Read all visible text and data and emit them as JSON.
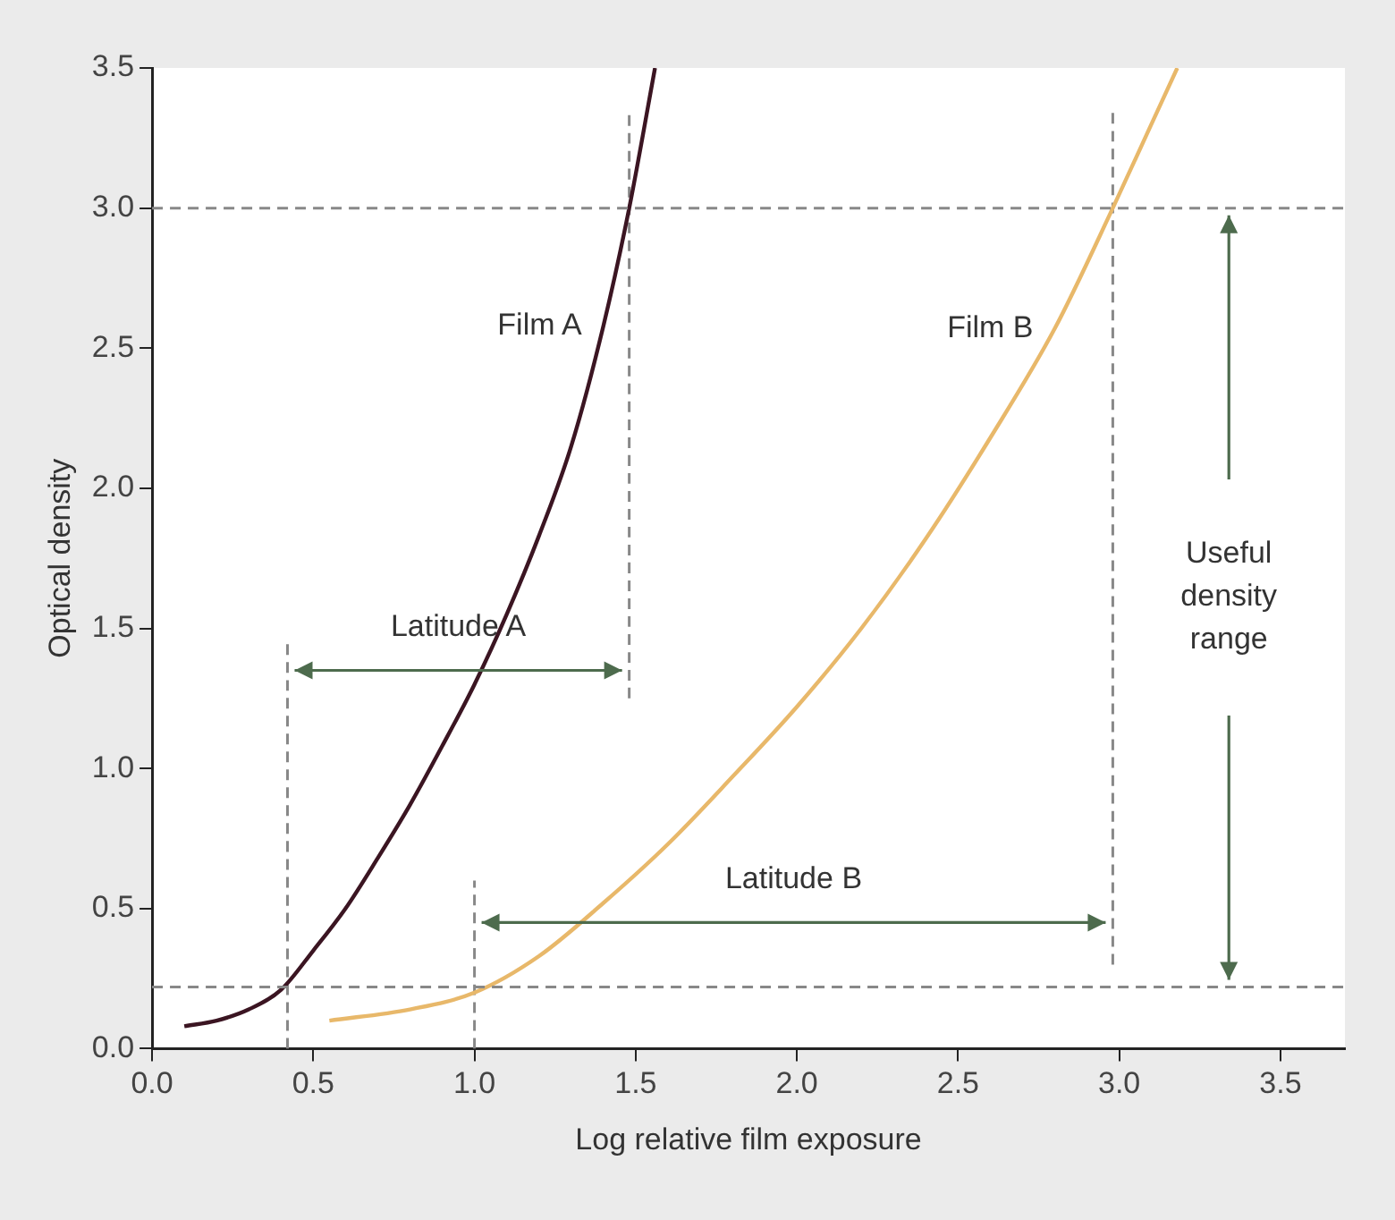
{
  "chart_data": {
    "type": "line",
    "xlabel": "Log relative film exposure",
    "ylabel": "Optical density",
    "xlim": [
      0,
      3.7
    ],
    "ylim": [
      0,
      3.5
    ],
    "xticks": [
      {
        "value": 0,
        "label": "0.0"
      },
      {
        "value": 0.5,
        "label": "0.5"
      },
      {
        "value": 1,
        "label": "1.0"
      },
      {
        "value": 1.5,
        "label": "1.5"
      },
      {
        "value": 2,
        "label": "2.0"
      },
      {
        "value": 2.5,
        "label": "2.5"
      },
      {
        "value": 3,
        "label": "3.0"
      },
      {
        "value": 3.5,
        "label": "3.5"
      }
    ],
    "yticks": [
      {
        "value": 0,
        "label": "0.0"
      },
      {
        "value": 0.5,
        "label": "0.5"
      },
      {
        "value": 1,
        "label": "1.0"
      },
      {
        "value": 1.5,
        "label": "1.5"
      },
      {
        "value": 2,
        "label": "2.0"
      },
      {
        "value": 2.5,
        "label": "2.5"
      },
      {
        "value": 3,
        "label": "3.0"
      },
      {
        "value": 3.5,
        "label": "3.5"
      }
    ],
    "grid": false,
    "legend": false,
    "marker": "none",
    "series": [
      {
        "name": "Film A",
        "color": "#3b1522",
        "x": [
          0.1,
          0.2,
          0.3,
          0.4,
          0.5,
          0.6,
          0.7,
          0.8,
          0.9,
          1.0,
          1.1,
          1.2,
          1.3,
          1.4,
          1.48,
          1.56
        ],
        "values": [
          0.08,
          0.1,
          0.14,
          0.21,
          0.35,
          0.5,
          0.68,
          0.87,
          1.08,
          1.3,
          1.55,
          1.83,
          2.15,
          2.58,
          3.0,
          3.5
        ]
      },
      {
        "name": "Film B",
        "color": "#e8b86a",
        "x": [
          0.55,
          0.8,
          1.0,
          1.2,
          1.4,
          1.6,
          1.8,
          2.0,
          2.2,
          2.4,
          2.6,
          2.8,
          2.98,
          3.1,
          3.18
        ],
        "values": [
          0.1,
          0.14,
          0.2,
          0.33,
          0.52,
          0.73,
          0.97,
          1.22,
          1.5,
          1.82,
          2.18,
          2.57,
          3.0,
          3.3,
          3.5
        ]
      },
      {
        "type": "line",
        "color": "#888888",
        "line_style": "dashed",
        "x": [
          0.42,
          0.42
        ],
        "values": [
          0,
          1.45
        ]
      },
      {
        "type": "line",
        "color": "#888888",
        "line_style": "dashed",
        "x": [
          1.48,
          1.48
        ],
        "values": [
          1.25,
          3.35
        ]
      },
      {
        "type": "line",
        "color": "#888888",
        "line_style": "dashed",
        "x": [
          1.0,
          1.0
        ],
        "values": [
          0,
          0.6
        ]
      },
      {
        "type": "line",
        "color": "#888888",
        "line_style": "dashed",
        "x": [
          2.98,
          2.98
        ],
        "values": [
          0.3,
          3.35
        ]
      }
    ],
    "ref_lines": [
      {
        "axis": "y",
        "value": 3.0,
        "color": "#888888",
        "line_style": "dashed"
      },
      {
        "axis": "y",
        "value": 0.22,
        "color": "#888888",
        "line_style": "dashed"
      }
    ],
    "annotations": [
      "Latitude A",
      "Latitude B",
      "Useful\ndensity\nrange"
    ]
  }
}
